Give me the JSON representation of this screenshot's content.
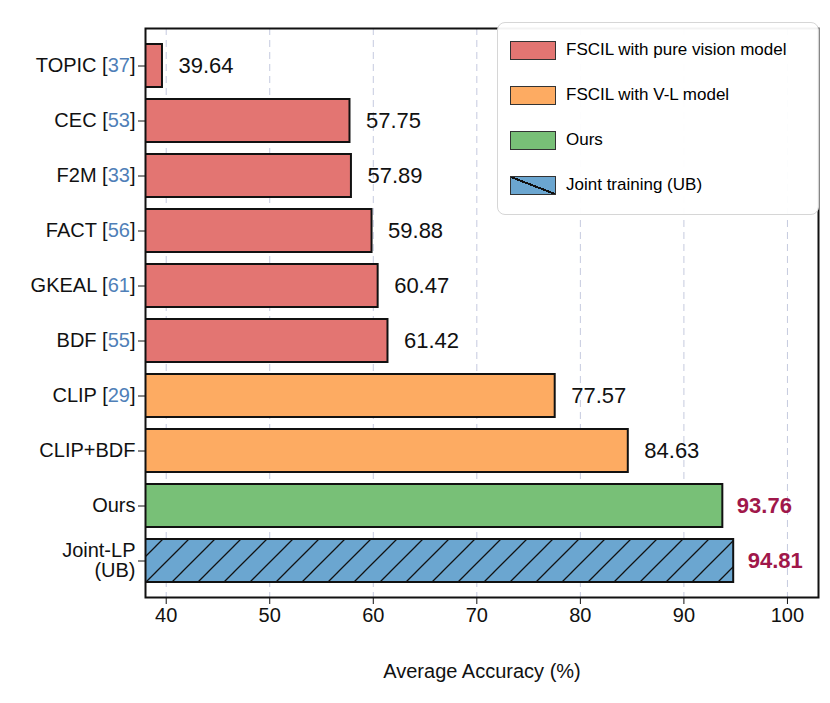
{
  "chart_data": {
    "type": "bar",
    "orientation": "horizontal",
    "categories": [
      "TOPIC [37]",
      "CEC [53]",
      "F2M [33]",
      "FACT [56]",
      "GKEAL [61]",
      "BDF [55]",
      "CLIP [29]",
      "CLIP+BDF",
      "Ours",
      "Joint-LP\n(UB)"
    ],
    "series": [
      {
        "name": "FSCIL with pure vision model",
        "color": "#e37572",
        "values": [
          39.64,
          57.75,
          57.89,
          59.88,
          60.47,
          61.42,
          null,
          null,
          null,
          null
        ]
      },
      {
        "name": "FSCIL with V-L model",
        "color": "#fdab62",
        "values": [
          null,
          null,
          null,
          null,
          null,
          null,
          77.57,
          84.63,
          null,
          null
        ]
      },
      {
        "name": "Ours",
        "color": "#78c077",
        "values": [
          null,
          null,
          null,
          null,
          null,
          null,
          null,
          null,
          93.76,
          null
        ]
      },
      {
        "name": "Joint training (UB)",
        "color": "#6ba6d0",
        "values": [
          null,
          null,
          null,
          null,
          null,
          null,
          null,
          null,
          null,
          94.81
        ]
      }
    ],
    "x_label": "Average Accuracy (%)",
    "xlim": [
      38,
      103
    ],
    "xticks": [
      40,
      50,
      60,
      70,
      80,
      90,
      100
    ],
    "grid": true,
    "legend": "upper right",
    "data_labels": true
  }
}
